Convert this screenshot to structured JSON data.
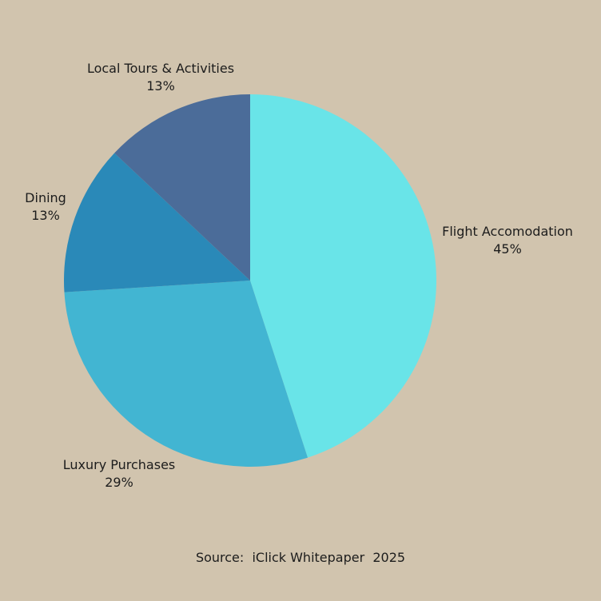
{
  "chart_data": {
    "type": "pie",
    "title": "",
    "slices": [
      {
        "label": "Flight Accomodation",
        "value": 45,
        "value_label": "45%",
        "color": "#69e4e8"
      },
      {
        "label": "Luxury Purchases",
        "value": 29,
        "value_label": "29%",
        "color": "#42b5d2"
      },
      {
        "label": "Dining",
        "value": 13,
        "value_label": "13%",
        "color": "#2a89b8"
      },
      {
        "label": "Local Tours & Activities",
        "value": 13,
        "value_label": "13%",
        "color": "#4b6c99"
      }
    ],
    "start": "12 o'clock",
    "direction": "clockwise",
    "legend": "none"
  },
  "source": "Source:  iClick Whitepaper  2025",
  "colors": {
    "background": "#d1c4ae"
  }
}
